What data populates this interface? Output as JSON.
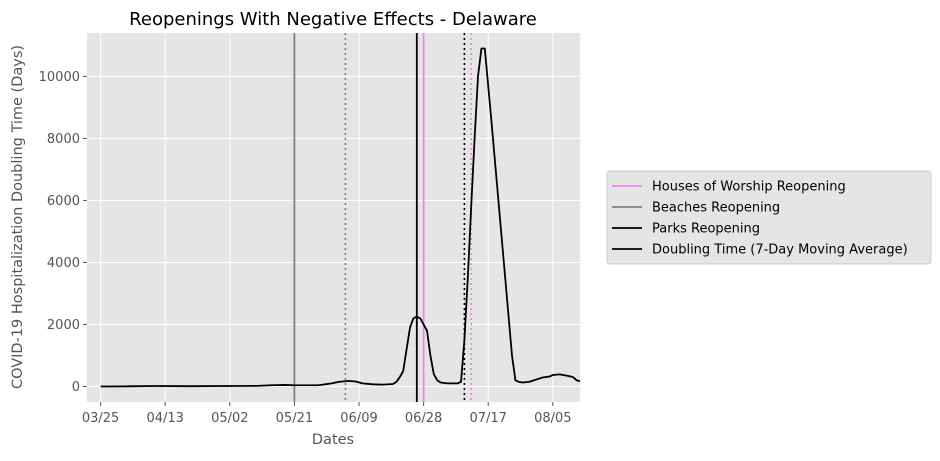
{
  "chart_data": {
    "type": "line",
    "title": "Reopenings With Negative Effects - Delaware",
    "xlabel": "Dates",
    "ylabel": "COVID-19 Hospitalization Doubling Time (Days)",
    "x_axis_type": "date",
    "xlim": [
      "2020-03-21",
      "2020-08-13"
    ],
    "ylim": [
      -500,
      11400
    ],
    "x_ticks": [
      {
        "date": "2020-03-25",
        "label": "03/25"
      },
      {
        "date": "2020-04-13",
        "label": "04/13"
      },
      {
        "date": "2020-05-02",
        "label": "05/02"
      },
      {
        "date": "2020-05-21",
        "label": "05/21"
      },
      {
        "date": "2020-06-09",
        "label": "06/09"
      },
      {
        "date": "2020-06-28",
        "label": "06/28"
      },
      {
        "date": "2020-07-17",
        "label": "07/17"
      },
      {
        "date": "2020-08-05",
        "label": "08/05"
      }
    ],
    "y_ticks": [
      0,
      2000,
      4000,
      6000,
      8000,
      10000
    ],
    "grid": true,
    "legend_position": "right",
    "series": [
      {
        "name": "Doubling Time (7-Day Moving Average)",
        "color": "#000000",
        "points": [
          [
            "2020-03-25",
            0
          ],
          [
            "2020-04-01",
            5
          ],
          [
            "2020-04-10",
            15
          ],
          [
            "2020-04-20",
            10
          ],
          [
            "2020-05-01",
            15
          ],
          [
            "2020-05-10",
            20
          ],
          [
            "2020-05-14",
            40
          ],
          [
            "2020-05-18",
            50
          ],
          [
            "2020-05-21",
            40
          ],
          [
            "2020-05-28",
            40
          ],
          [
            "2020-06-01",
            100
          ],
          [
            "2020-06-03",
            150
          ],
          [
            "2020-06-06",
            180
          ],
          [
            "2020-06-08",
            160
          ],
          [
            "2020-06-10",
            100
          ],
          [
            "2020-06-13",
            70
          ],
          [
            "2020-06-16",
            60
          ],
          [
            "2020-06-19",
            80
          ],
          [
            "2020-06-20",
            150
          ],
          [
            "2020-06-21",
            300
          ],
          [
            "2020-06-22",
            500
          ],
          [
            "2020-06-23",
            1200
          ],
          [
            "2020-06-24",
            1900
          ],
          [
            "2020-06-25",
            2200
          ],
          [
            "2020-06-26",
            2250
          ],
          [
            "2020-06-27",
            2200
          ],
          [
            "2020-06-28",
            2000
          ],
          [
            "2020-06-29",
            1800
          ],
          [
            "2020-06-30",
            1000
          ],
          [
            "2020-07-01",
            400
          ],
          [
            "2020-07-02",
            200
          ],
          [
            "2020-07-03",
            130
          ],
          [
            "2020-07-05",
            100
          ],
          [
            "2020-07-08",
            100
          ],
          [
            "2020-07-09",
            150
          ],
          [
            "2020-07-10",
            1500
          ],
          [
            "2020-07-11",
            3500
          ],
          [
            "2020-07-12",
            5800
          ],
          [
            "2020-07-13",
            8000
          ],
          [
            "2020-07-14",
            10000
          ],
          [
            "2020-07-15",
            10900
          ],
          [
            "2020-07-16",
            10900
          ],
          [
            "2020-07-18",
            8500
          ],
          [
            "2020-07-20",
            6000
          ],
          [
            "2020-07-22",
            3500
          ],
          [
            "2020-07-24",
            1000
          ],
          [
            "2020-07-25",
            200
          ],
          [
            "2020-07-26",
            150
          ],
          [
            "2020-07-27",
            130
          ],
          [
            "2020-07-29",
            150
          ],
          [
            "2020-07-31",
            220
          ],
          [
            "2020-08-02",
            290
          ],
          [
            "2020-08-04",
            320
          ],
          [
            "2020-08-05",
            370
          ],
          [
            "2020-08-07",
            390
          ],
          [
            "2020-08-10",
            330
          ],
          [
            "2020-08-11",
            300
          ],
          [
            "2020-08-12",
            200
          ],
          [
            "2020-08-13",
            170
          ]
        ]
      }
    ],
    "vlines": [
      {
        "date": "2020-05-21",
        "color": "#808080",
        "style": "solid",
        "legend": "Beaches Reopening"
      },
      {
        "date": "2020-06-05",
        "color": "#808080",
        "style": "dotted"
      },
      {
        "date": "2020-06-26",
        "color": "#000000",
        "style": "solid",
        "legend": "Parks Reopening"
      },
      {
        "date": "2020-06-28",
        "color": "#ee82ee",
        "style": "solid",
        "legend": "Houses of Worship Reopening"
      },
      {
        "date": "2020-07-10",
        "color": "#000000",
        "style": "dotted"
      },
      {
        "date": "2020-07-12",
        "color": "#ee82ee",
        "style": "dotted"
      }
    ],
    "legend": [
      {
        "label": "Houses of Worship Reopening",
        "color": "#ee82ee"
      },
      {
        "label": "Beaches Reopening",
        "color": "#808080"
      },
      {
        "label": "Parks Reopening",
        "color": "#000000"
      },
      {
        "label": "Doubling Time (7-Day Moving Average)",
        "color": "#000000"
      }
    ],
    "colors": {
      "plot_background": "#e5e5e5",
      "grid": "#ffffff",
      "tick_label": "#555555",
      "axis_label": "#555555"
    }
  }
}
